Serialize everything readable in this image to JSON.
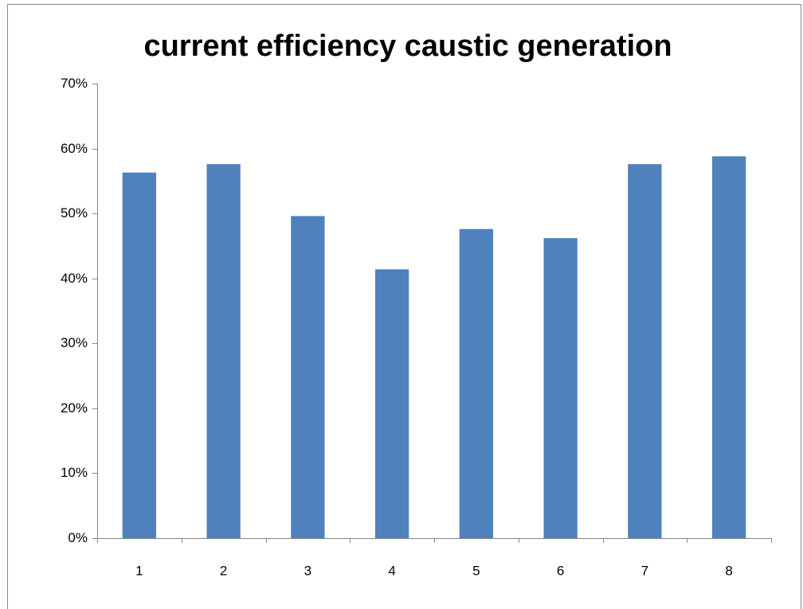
{
  "chart_data": {
    "type": "bar",
    "title": "current efficiency caustic generation",
    "categories": [
      "1",
      "2",
      "3",
      "4",
      "5",
      "6",
      "7",
      "8"
    ],
    "values": [
      56.3,
      57.6,
      49.6,
      41.4,
      47.6,
      46.2,
      57.6,
      58.8
    ],
    "color": "#4f81bd",
    "ylim": [
      0,
      70
    ],
    "yticks": [
      {
        "value": 0,
        "label": "0%"
      },
      {
        "value": 10,
        "label": "10%"
      },
      {
        "value": 20,
        "label": "20%"
      },
      {
        "value": 30,
        "label": "30%"
      },
      {
        "value": 40,
        "label": "40%"
      },
      {
        "value": 50,
        "label": "50%"
      },
      {
        "value": 60,
        "label": "60%"
      },
      {
        "value": 70,
        "label": "70%"
      }
    ],
    "grid": false
  }
}
